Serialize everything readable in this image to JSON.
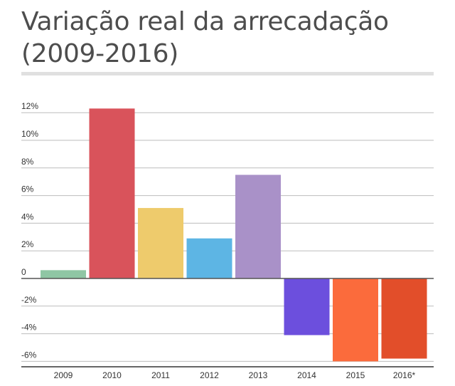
{
  "title": "Variação real da arrecadação (2009-2016)",
  "chart_data": {
    "type": "bar",
    "title": "Variação real da arrecadação (2009-2016)",
    "categories": [
      "2009",
      "2010",
      "2011",
      "2012",
      "2013",
      "2014",
      "2015",
      "2016*"
    ],
    "values": [
      0.6,
      12.3,
      5.1,
      2.9,
      7.5,
      -4.1,
      -6.0,
      -5.8
    ],
    "colors": [
      "#8fc6a4",
      "#d9535b",
      "#eecb6c",
      "#5db5e4",
      "#a991c8",
      "#6c4fdd",
      "#fb6b3c",
      "#e24e2a"
    ],
    "yticks": [
      12,
      10,
      8,
      6,
      4,
      2,
      0,
      -2,
      -4,
      -6
    ],
    "ytick_labels": [
      "12%",
      "10%",
      "8%",
      "6%",
      "4%",
      "2%",
      "0",
      "-2%",
      "-4%",
      "-6%"
    ],
    "ylim": [
      -6.5,
      12.5
    ],
    "xlabel": "",
    "ylabel": "",
    "grid": true,
    "legend": "none"
  }
}
